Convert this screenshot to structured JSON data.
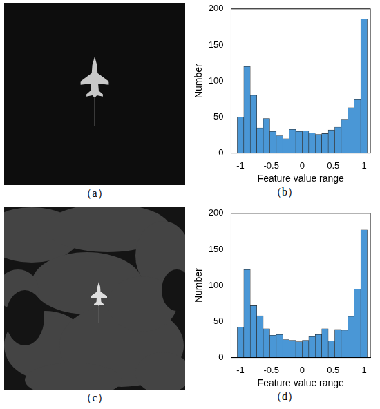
{
  "chart_data": [
    {
      "type": "histogram",
      "caption": "（b）",
      "x_label": "Feature value range",
      "y_label": "Number",
      "bins": [
        -1.05,
        -0.945,
        -0.84,
        -0.735,
        -0.63,
        -0.525,
        -0.42,
        -0.315,
        -0.21,
        -0.105,
        0,
        0.105,
        0.21,
        0.315,
        0.42,
        0.525,
        0.63,
        0.735,
        0.84,
        0.945,
        1.05
      ],
      "values": [
        50,
        120,
        80,
        35,
        48,
        30,
        24,
        20,
        33,
        30,
        31,
        28,
        26,
        27,
        32,
        36,
        47,
        63,
        74,
        186
      ],
      "color": "#4a97d6",
      "xlim": [
        -1.15,
        1.1
      ],
      "xticks": [
        -1,
        -0.5,
        0,
        0.5,
        1
      ],
      "ylim": [
        0,
        200
      ],
      "yticks": [
        0,
        50,
        100,
        150,
        200
      ],
      "grid": false
    },
    {
      "type": "histogram",
      "caption": "（d）",
      "x_label": "Feature value range",
      "y_label": "Number",
      "bins": [
        -1.05,
        -0.945,
        -0.84,
        -0.735,
        -0.63,
        -0.525,
        -0.42,
        -0.315,
        -0.21,
        -0.105,
        0,
        0.105,
        0.21,
        0.315,
        0.42,
        0.525,
        0.63,
        0.735,
        0.84,
        0.945,
        1.05
      ],
      "values": [
        42,
        122,
        72,
        58,
        40,
        31,
        32,
        25,
        24,
        22,
        24,
        29,
        32,
        40,
        23,
        39,
        38,
        57,
        95,
        177
      ],
      "color": "#4a97d6",
      "xlim": [
        -1.15,
        1.1
      ],
      "xticks": [
        -1,
        -0.5,
        0,
        0.5,
        1
      ],
      "ylim": [
        0,
        200
      ],
      "yticks": [
        0,
        50,
        100,
        150,
        200
      ],
      "grid": false
    }
  ],
  "image_panels": [
    {
      "caption": "（a）"
    },
    {
      "caption": "（c）"
    }
  ]
}
